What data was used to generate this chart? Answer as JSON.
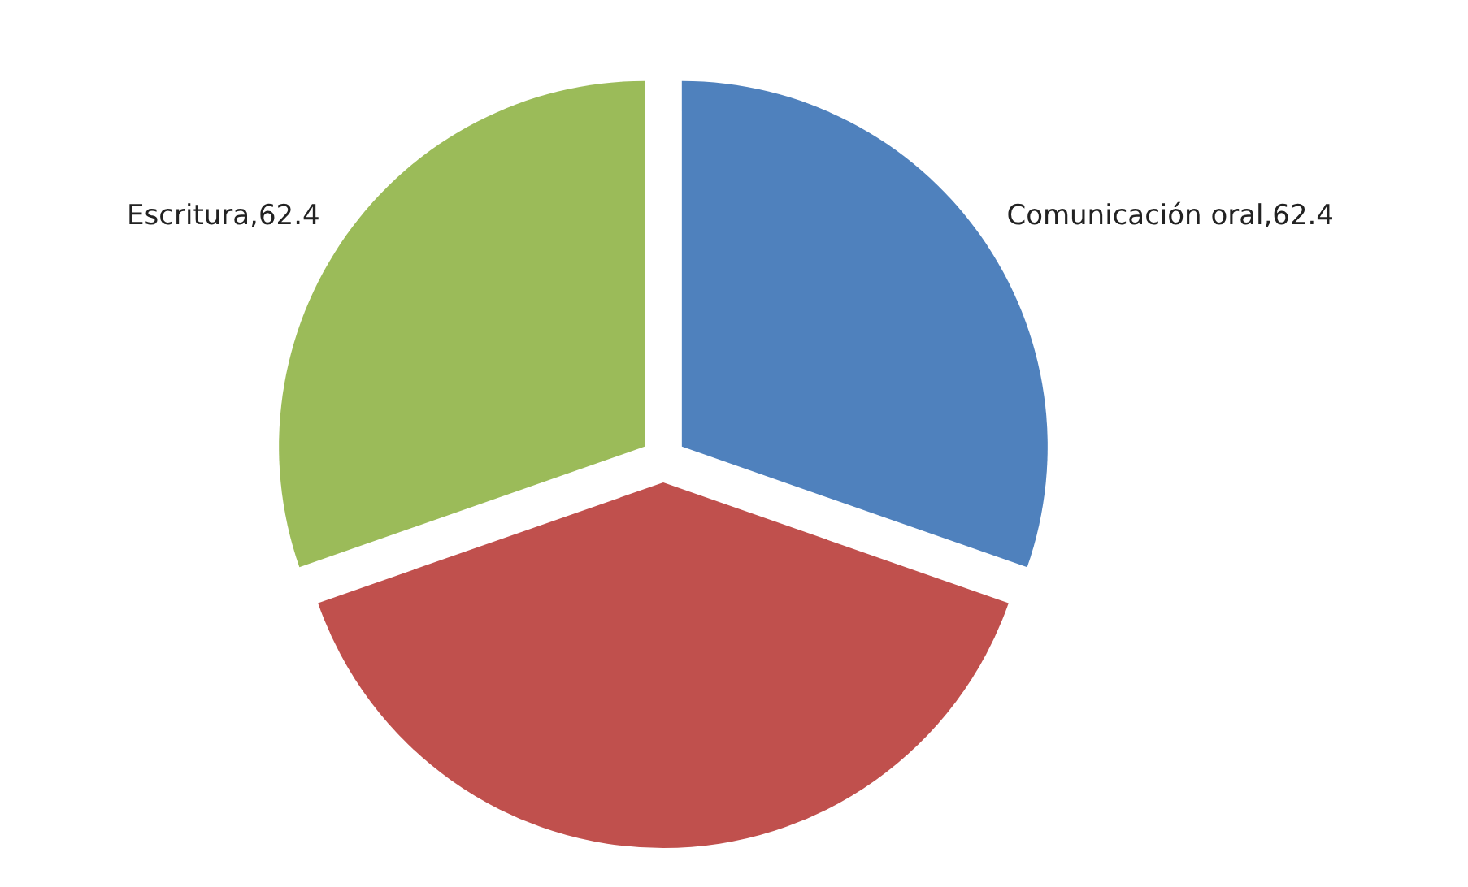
{
  "chart_data": {
    "type": "pie",
    "categories": [
      "Comunicación oral",
      null,
      "Escritura"
    ],
    "values": [
      62.4,
      80.8,
      62.4
    ],
    "colors": [
      "#4f81bd",
      "#c0504d",
      "#9bbb59"
    ],
    "value_labels": [
      "62.4",
      null,
      "62.4"
    ]
  }
}
